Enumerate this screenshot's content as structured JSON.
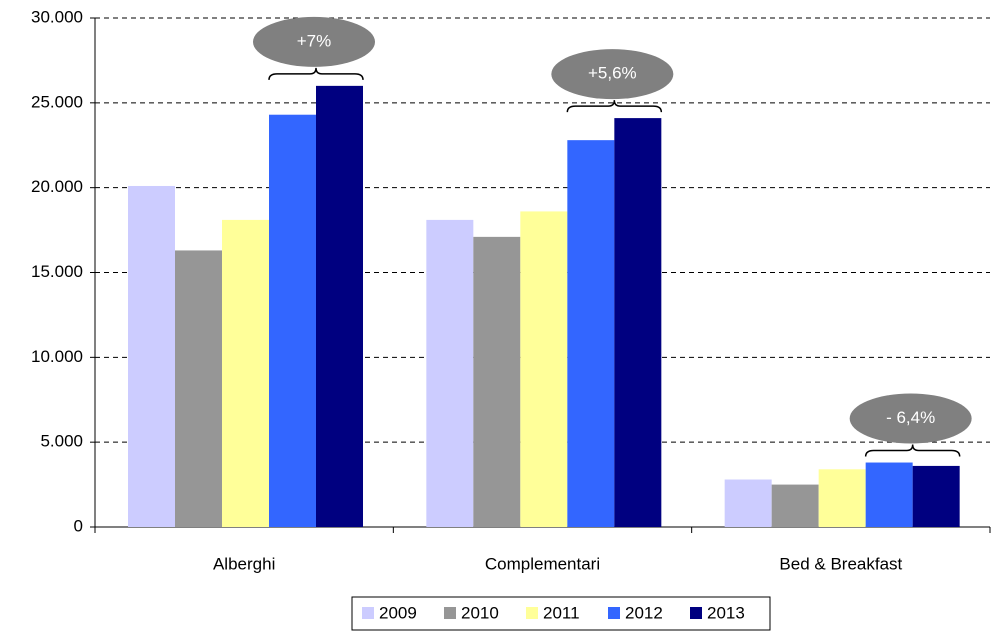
{
  "chart_data": {
    "type": "bar",
    "categories": [
      "Alberghi",
      "Complementari",
      "Bed & Breakfast"
    ],
    "series": [
      {
        "name": "2009",
        "color": "#ccccff",
        "values": [
          20100,
          18100,
          2800
        ]
      },
      {
        "name": "2010",
        "color": "#969696",
        "values": [
          16300,
          17100,
          2500
        ]
      },
      {
        "name": "2011",
        "color": "#ffff99",
        "values": [
          18100,
          18600,
          3400
        ]
      },
      {
        "name": "2012",
        "color": "#3366ff",
        "values": [
          24300,
          22800,
          3800
        ]
      },
      {
        "name": "2013",
        "color": "#000080",
        "values": [
          26000,
          24100,
          3600
        ]
      }
    ],
    "ylim": [
      0,
      30000
    ],
    "yticks": [
      0,
      {
        "value": 5000,
        "label": "5.000"
      },
      {
        "value": 10000,
        "label": "10.000"
      },
      {
        "value": 15000,
        "label": "15.000"
      },
      {
        "value": 20000,
        "label": "20.000"
      },
      {
        "value": 25000,
        "label": "25.000"
      },
      {
        "value": 30000,
        "label": "30.000"
      }
    ],
    "grid": true,
    "legend": "bottom",
    "annotations": [
      "+7%",
      "+5,6%",
      "- 6,4%"
    ]
  }
}
